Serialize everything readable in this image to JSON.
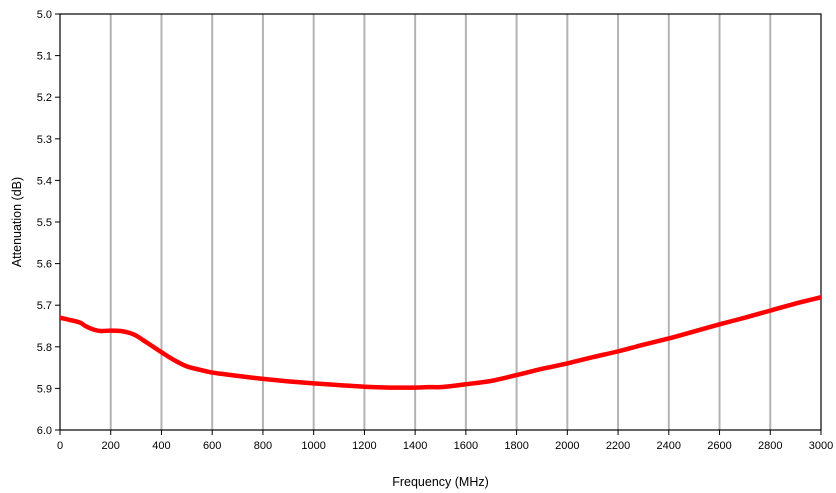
{
  "chart_data": {
    "type": "line",
    "title": "",
    "xlabel": "Frequency (MHz)",
    "ylabel": "Attenuation (dB)",
    "xlim": [
      0,
      3000
    ],
    "ylim": [
      5.0,
      6.0
    ],
    "y_inverted": true,
    "x_ticks": [
      0,
      200,
      400,
      600,
      800,
      1000,
      1200,
      1400,
      1600,
      1800,
      2000,
      2200,
      2400,
      2600,
      2800,
      3000
    ],
    "y_ticks": [
      "5.0",
      "5.1",
      "5.2",
      "5.3",
      "5.4",
      "5.5",
      "5.6",
      "5.7",
      "5.8",
      "5.9",
      "6.0"
    ],
    "grid": "vertical",
    "legend": "none",
    "series": [
      {
        "color": "#ff0000",
        "x": [
          0,
          50,
          80,
          100,
          130,
          160,
          200,
          240,
          270,
          300,
          330,
          360,
          400,
          450,
          500,
          550,
          600,
          650,
          700,
          800,
          900,
          1000,
          1100,
          1200,
          1300,
          1400,
          1450,
          1500,
          1550,
          1600,
          1700,
          1800,
          1900,
          2000,
          2100,
          2200,
          2300,
          2400,
          2500,
          2600,
          2700,
          2800,
          2900,
          3000
        ],
        "values": [
          5.73,
          5.737,
          5.742,
          5.75,
          5.758,
          5.762,
          5.761,
          5.762,
          5.766,
          5.773,
          5.785,
          5.797,
          5.813,
          5.832,
          5.847,
          5.855,
          5.862,
          5.866,
          5.87,
          5.877,
          5.883,
          5.888,
          5.892,
          5.896,
          5.898,
          5.898,
          5.897,
          5.897,
          5.894,
          5.89,
          5.882,
          5.868,
          5.853,
          5.84,
          5.825,
          5.811,
          5.795,
          5.78,
          5.763,
          5.746,
          5.73,
          5.713,
          5.696,
          5.681
        ]
      }
    ]
  }
}
